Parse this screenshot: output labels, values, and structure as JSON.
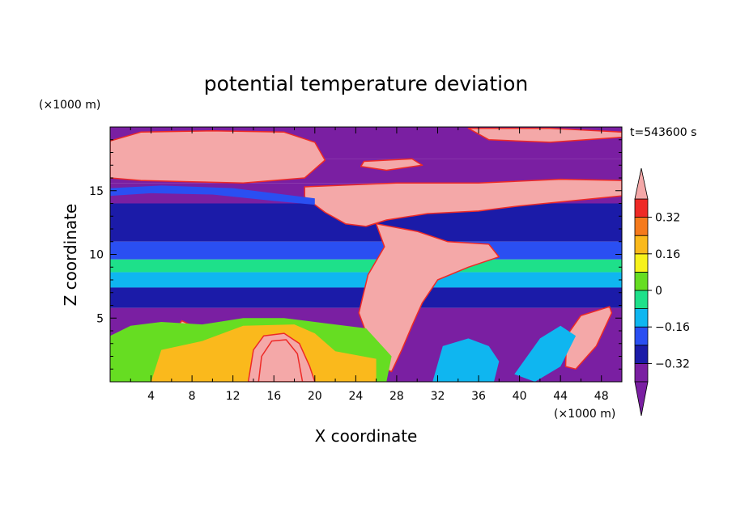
{
  "chart_data": {
    "type": "heatmap",
    "title": "potential temperature deviation",
    "time_label": "t=543600 s",
    "xlabel": "X coordinate",
    "ylabel": "Z coordinate",
    "x_unit_label": "(×1000 m)",
    "y_unit_label": "(×1000 m)",
    "xlim": [
      0,
      50
    ],
    "ylim": [
      0,
      20
    ],
    "x_ticks": [
      4,
      8,
      12,
      16,
      20,
      24,
      28,
      32,
      36,
      40,
      44,
      48
    ],
    "x_tick_labels": [
      "4",
      "8",
      "12",
      "16",
      "20",
      "24",
      "28",
      "32",
      "36",
      "40",
      "44",
      "48"
    ],
    "y_ticks": [
      5,
      10,
      15
    ],
    "y_tick_labels": [
      "5",
      "10",
      "15"
    ],
    "colorbar": {
      "levels": [
        -0.4,
        -0.32,
        -0.24,
        -0.16,
        -0.08,
        0,
        0.08,
        0.16,
        0.24,
        0.32,
        0.4
      ],
      "labels": [
        {
          "value": 0.32,
          "text": "0.32"
        },
        {
          "value": 0.16,
          "text": "0.16"
        },
        {
          "value": 0,
          "text": "0"
        },
        {
          "value": -0.16,
          "text": "−0.16"
        },
        {
          "value": -0.32,
          "text": "−0.32"
        }
      ],
      "over_color": "#f4a8a8",
      "under_color": "#7a1fa2",
      "colors": [
        "#7a1fa2",
        "#1b1ba8",
        "#2a4ff2",
        "#0fb6f0",
        "#1ee08a",
        "#66dd22",
        "#f7f21c",
        "#fab91c",
        "#f57a1c",
        "#ee2a26"
      ]
    },
    "bands": [
      {
        "z_from": 17.5,
        "z_to": 20.0,
        "value": -0.45
      },
      {
        "z_from": 15.6,
        "z_to": 17.5,
        "value": -0.45
      },
      {
        "z_from": 14.0,
        "z_to": 15.6,
        "value": -0.36
      },
      {
        "z_from": 11.0,
        "z_to": 14.0,
        "value": -0.28
      },
      {
        "z_from": 9.6,
        "z_to": 11.0,
        "value": -0.2
      },
      {
        "z_from": 8.6,
        "z_to": 9.6,
        "value": -0.04
      },
      {
        "z_from": 7.4,
        "z_to": 8.6,
        "value": -0.12
      },
      {
        "z_from": 5.8,
        "z_to": 7.4,
        "value": -0.3
      },
      {
        "z_from": 0.0,
        "z_to": 5.8,
        "value": -0.45
      }
    ],
    "regions": [
      {
        "value": 0.45,
        "points": [
          [
            0,
            18.9
          ],
          [
            3,
            19.6
          ],
          [
            10,
            19.7
          ],
          [
            17,
            19.6
          ],
          [
            20,
            18.8
          ],
          [
            21,
            17.4
          ],
          [
            19,
            16.0
          ],
          [
            13,
            15.6
          ],
          [
            8,
            15.7
          ],
          [
            3,
            15.8
          ],
          [
            0,
            16.0
          ]
        ]
      },
      {
        "value": 0.45,
        "points": [
          [
            19,
            15.3
          ],
          [
            28,
            15.6
          ],
          [
            36,
            15.6
          ],
          [
            44,
            15.9
          ],
          [
            50,
            15.8
          ],
          [
            50,
            14.6
          ],
          [
            40,
            13.8
          ],
          [
            36,
            13.4
          ],
          [
            31,
            13.2
          ],
          [
            27,
            12.7
          ],
          [
            25,
            12.2
          ],
          [
            23,
            12.4
          ],
          [
            21,
            13.3
          ],
          [
            19,
            14.5
          ]
        ]
      },
      {
        "value": 0.45,
        "points": [
          [
            26,
            12.4
          ],
          [
            30,
            11.8
          ],
          [
            33,
            11.0
          ],
          [
            37,
            10.8
          ],
          [
            38,
            9.8
          ],
          [
            35,
            9.0
          ],
          [
            32,
            8.0
          ],
          [
            30.5,
            6.2
          ],
          [
            29.5,
            4.4
          ],
          [
            28.5,
            2.5
          ],
          [
            27.5,
            0.8
          ],
          [
            26.2,
            1.2
          ],
          [
            25.4,
            3.0
          ],
          [
            24.3,
            5.4
          ],
          [
            25.2,
            8.4
          ],
          [
            26.8,
            10.6
          ]
        ]
      },
      {
        "value": 0.45,
        "points": [
          [
            44.5,
            1.2
          ],
          [
            45.5,
            1.0
          ],
          [
            47.5,
            2.8
          ],
          [
            49.0,
            5.4
          ],
          [
            48.8,
            5.9
          ],
          [
            46.0,
            5.2
          ],
          [
            44.6,
            3.6
          ]
        ]
      },
      {
        "value": 0.45,
        "points": [
          [
            35,
            19.9
          ],
          [
            43,
            19.9
          ],
          [
            50,
            19.6
          ],
          [
            50,
            19.2
          ],
          [
            43,
            18.8
          ],
          [
            37,
            19.0
          ]
        ]
      },
      {
        "value": 0.45,
        "points": [
          [
            24.8,
            17.3
          ],
          [
            29.5,
            17.5
          ],
          [
            30.5,
            17.0
          ],
          [
            27,
            16.6
          ],
          [
            24.5,
            16.9
          ]
        ]
      },
      {
        "value": 0.45,
        "points": [
          [
            7,
            4.8
          ],
          [
            9,
            4.0
          ],
          [
            10.8,
            2.8
          ],
          [
            10.0,
            2.0
          ],
          [
            8.2,
            2.9
          ],
          [
            6.5,
            4.2
          ]
        ]
      },
      {
        "value": 0.0,
        "points": [
          [
            0,
            0
          ],
          [
            0,
            3.6
          ],
          [
            2,
            4.4
          ],
          [
            5,
            4.7
          ],
          [
            9,
            4.5
          ],
          [
            13,
            5.0
          ],
          [
            17,
            5.0
          ],
          [
            21,
            4.6
          ],
          [
            25,
            4.2
          ],
          [
            27.5,
            2.0
          ],
          [
            27,
            0
          ]
        ]
      },
      {
        "value": 0.16,
        "points": [
          [
            5,
            2.5
          ],
          [
            9,
            3.2
          ],
          [
            13,
            4.4
          ],
          [
            18,
            4.5
          ],
          [
            20,
            3.8
          ],
          [
            22,
            2.4
          ],
          [
            26,
            1.8
          ],
          [
            26,
            0
          ],
          [
            4,
            0
          ]
        ]
      },
      {
        "value": 0.4,
        "points": [
          [
            13.5,
            0
          ],
          [
            14.0,
            2.5
          ],
          [
            15.0,
            3.6
          ],
          [
            17.0,
            3.8
          ],
          [
            18.5,
            3.0
          ],
          [
            19.5,
            1.2
          ],
          [
            20.0,
            0
          ]
        ]
      },
      {
        "value": 0.45,
        "points": [
          [
            14.5,
            0
          ],
          [
            14.8,
            2.0
          ],
          [
            15.8,
            3.2
          ],
          [
            17.2,
            3.3
          ],
          [
            18.3,
            2.2
          ],
          [
            18.8,
            0
          ]
        ]
      },
      {
        "value": -0.12,
        "points": [
          [
            31.5,
            0
          ],
          [
            32.5,
            2.8
          ],
          [
            35.0,
            3.4
          ],
          [
            37.0,
            2.8
          ],
          [
            38.0,
            1.6
          ],
          [
            37.5,
            0
          ]
        ]
      },
      {
        "value": -0.12,
        "points": [
          [
            39.5,
            0.6
          ],
          [
            42.0,
            3.4
          ],
          [
            44.0,
            4.4
          ],
          [
            45.5,
            3.6
          ],
          [
            44.0,
            1.2
          ],
          [
            41.5,
            0
          ]
        ]
      },
      {
        "value": -0.2,
        "points": [
          [
            0,
            14.6
          ],
          [
            4,
            14.8
          ],
          [
            10,
            14.7
          ],
          [
            16,
            14.2
          ],
          [
            20,
            13.9
          ],
          [
            20,
            14.4
          ],
          [
            12,
            15.2
          ],
          [
            5,
            15.4
          ],
          [
            0,
            15.2
          ]
        ]
      }
    ]
  }
}
